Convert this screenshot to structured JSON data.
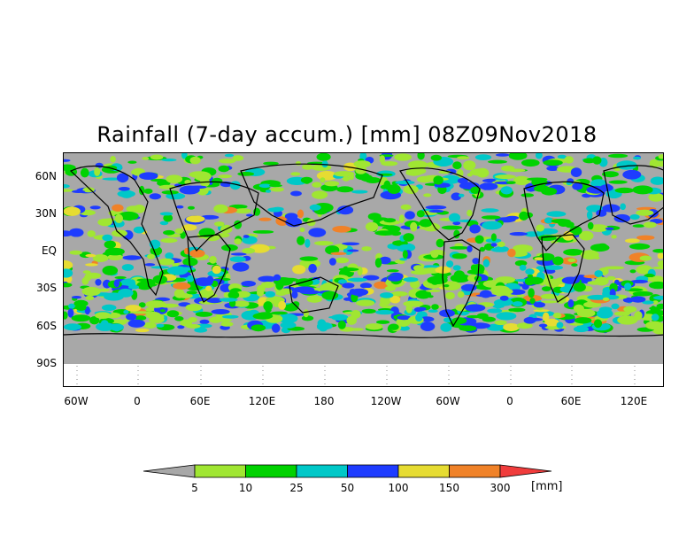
{
  "title": "Rainfall (7-day accum.) [mm] 08Z09Nov2018",
  "lat_labels": [
    "60N",
    "30N",
    "EQ",
    "30S",
    "60S",
    "90S"
  ],
  "lon_labels": [
    "60W",
    "0",
    "60E",
    "120E",
    "180",
    "120W",
    "60W",
    "0",
    "60E",
    "120E"
  ],
  "colorbar": {
    "labels": [
      "5",
      "10",
      "25",
      "50",
      "100",
      "150",
      "300"
    ],
    "unit": "[mm]",
    "colors": {
      "below": "#a8a8a8",
      "bins": [
        "#a0e632",
        "#00d200",
        "#00c8c8",
        "#1e3cff",
        "#e6dc32",
        "#f08228"
      ],
      "above": "#f03c3c"
    }
  },
  "colors": {
    "no_rain": "#a8a8a8",
    "coastline": "#000000"
  }
}
